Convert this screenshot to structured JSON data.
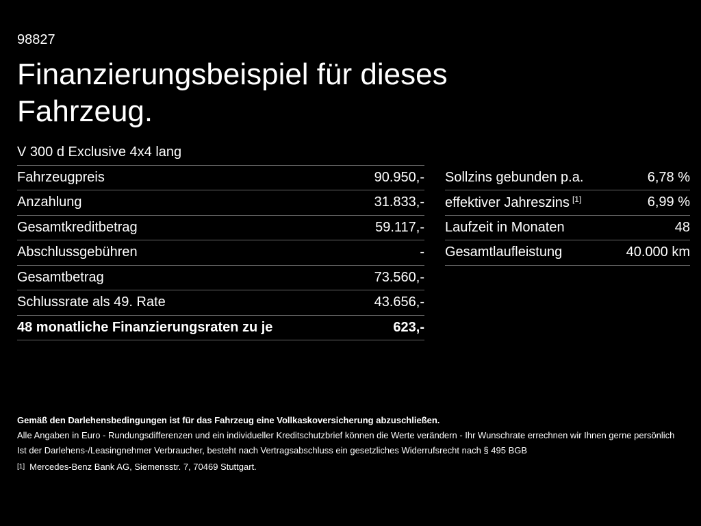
{
  "page": {
    "vehicle_code": "98827",
    "title": "Finanzierungsbeispiel für dieses Fahrzeug.",
    "model_name": "V 300 d Exclusive 4x4 lang"
  },
  "finance_table": {
    "rows": [
      {
        "label": "Fahrzeugpreis",
        "value": "90.950,-"
      },
      {
        "label": "Anzahlung",
        "value": "31.833,-"
      },
      {
        "label": "Gesamtkreditbetrag",
        "value": "59.117,-"
      },
      {
        "label": "Abschlussgebühren",
        "value": "-"
      },
      {
        "label": "Gesamtbetrag",
        "value": "73.560,-"
      },
      {
        "label": "Schlussrate als 49. Rate",
        "value": "43.656,-"
      },
      {
        "label": "48 monatliche Finanzierungsraten zu je",
        "value": "623,-"
      }
    ]
  },
  "conditions_table": {
    "rows": [
      {
        "label": "Sollzins gebunden p.a.",
        "value": "6,78 %"
      },
      {
        "label": "effektiver Jahreszins",
        "sup": "[1]",
        "value": "6,99 %"
      },
      {
        "label": "Laufzeit in Monaten",
        "value": "48"
      },
      {
        "label": "Gesamtlaufleistung",
        "value": "40.000 km"
      }
    ]
  },
  "footer": {
    "insurance_note": "Gemäß den Darlehensbedingungen ist für das Fahrzeug eine Vollkaskoversicherung abzuschließen.",
    "note_line1": "Alle Angaben in Euro - Rundungsdifferenzen und ein individueller Kreditschutzbrief können die Werte verändern - Ihr Wunschrate errechnen wir Ihnen gerne persönlich",
    "note_line2": "Ist der Darlehens-/Leasingnehmer Verbraucher, besteht nach Vertragsabschluss ein gesetzliches Widerrufsrecht nach § 495 BGB",
    "footnote_marker": "[1]",
    "footnote_text": "Mercedes-Benz Bank AG, Siemensstr. 7, 70469 Stuttgart."
  },
  "colors": {
    "background": "#000000",
    "text": "#ffffff",
    "divider": "#686868"
  }
}
